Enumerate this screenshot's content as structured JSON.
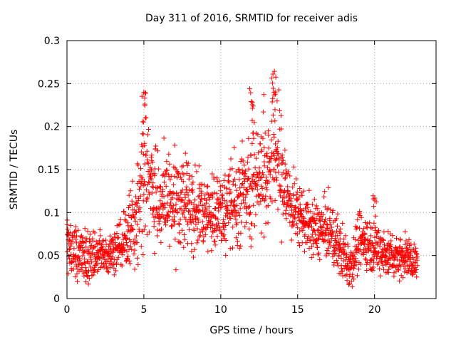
{
  "chart_data": {
    "type": "scatter",
    "title": "Day 311 of 2016, SRMTID for receiver adis",
    "xlabel": "GPS time / hours",
    "ylabel": "SRMTID / TECUs",
    "xlim": [
      0,
      24
    ],
    "ylim": [
      0,
      0.3
    ],
    "xticks": [
      0,
      5,
      10,
      15,
      20
    ],
    "yticks": [
      0,
      0.05,
      0.1,
      0.15,
      0.2,
      0.25,
      0.3
    ],
    "grid": true,
    "marker": "+",
    "color": "#ff0000",
    "envelope": {
      "description": "approximate central trend and spread of the plotted SRMTID values",
      "x": [
        0,
        1,
        2,
        2.8,
        3.5,
        4.5,
        5,
        5.5,
        6,
        7,
        8,
        9,
        10,
        11,
        12,
        13,
        13.5,
        14,
        14.5,
        15,
        16,
        17,
        18,
        18.5,
        19,
        20,
        21,
        22,
        22.8
      ],
      "center": [
        0.06,
        0.05,
        0.05,
        0.05,
        0.06,
        0.09,
        0.16,
        0.13,
        0.11,
        0.11,
        0.11,
        0.1,
        0.1,
        0.11,
        0.14,
        0.15,
        0.18,
        0.14,
        0.11,
        0.1,
        0.08,
        0.08,
        0.05,
        0.04,
        0.07,
        0.06,
        0.05,
        0.05,
        0.04
      ],
      "spread": [
        0.03,
        0.03,
        0.025,
        0.02,
        0.03,
        0.04,
        0.07,
        0.05,
        0.05,
        0.05,
        0.05,
        0.04,
        0.04,
        0.05,
        0.06,
        0.06,
        0.08,
        0.06,
        0.04,
        0.03,
        0.03,
        0.03,
        0.03,
        0.025,
        0.03,
        0.025,
        0.025,
        0.02,
        0.02
      ]
    },
    "peaks": [
      {
        "x": 5.0,
        "y": 0.24
      },
      {
        "x": 12.0,
        "y": 0.245
      },
      {
        "x": 13.5,
        "y": 0.27
      },
      {
        "x": 20.0,
        "y": 0.122
      }
    ],
    "n_points": 1900
  }
}
